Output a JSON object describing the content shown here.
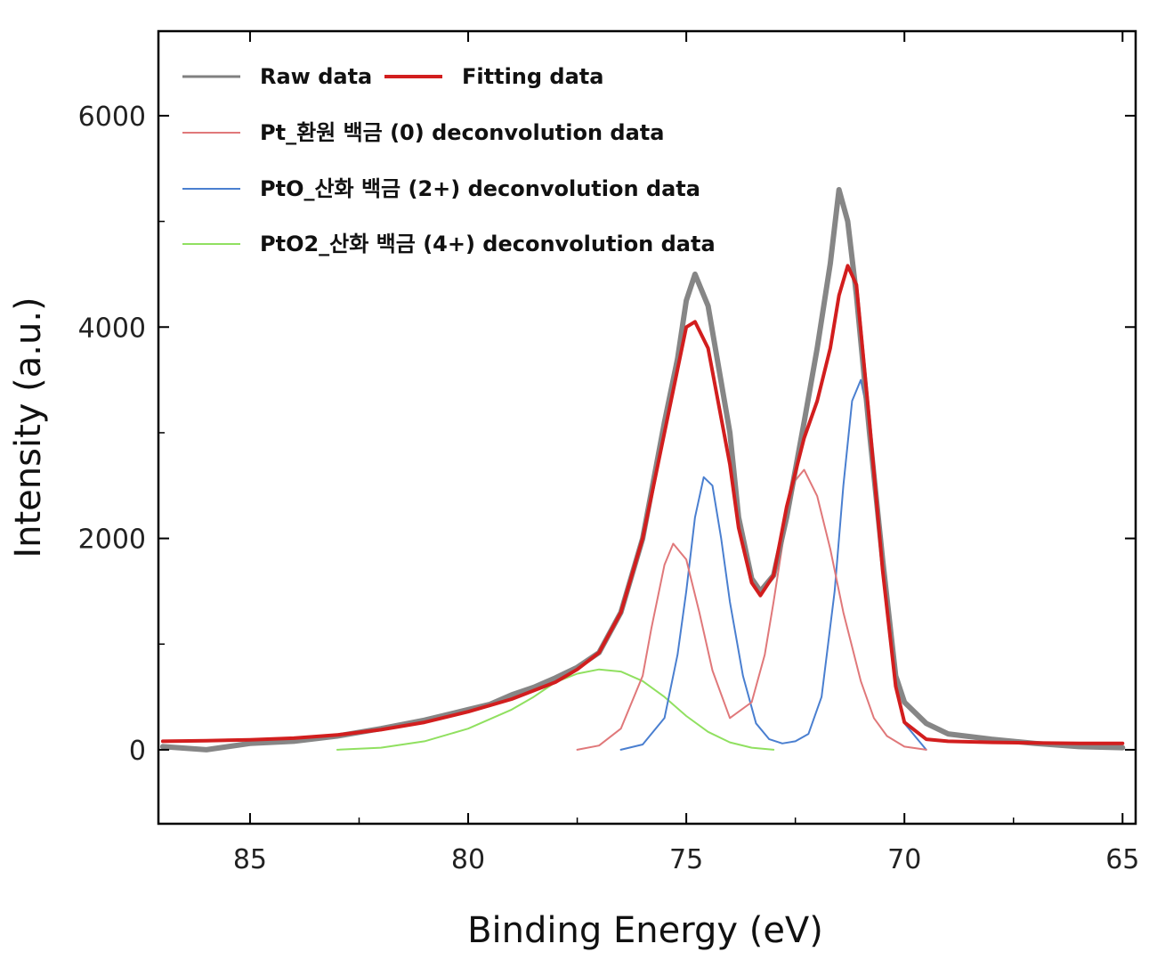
{
  "chart_data": {
    "type": "line",
    "xlabel": "Binding Energy (eV)",
    "ylabel": "Intensity (a.u.)",
    "xlim": [
      87.1,
      64.7
    ],
    "ylim": [
      -700,
      6800
    ],
    "x_reversed": true,
    "x_ticks": [
      85,
      80,
      75,
      70,
      65
    ],
    "y_ticks": [
      0,
      2000,
      4000,
      6000
    ],
    "grid": false,
    "legend_position": "top-left",
    "legend": [
      {
        "label": "Raw data",
        "color": "#808080"
      },
      {
        "label": "Fitting data",
        "color": "#d21e1e"
      },
      {
        "label": "Pt_환원 백금 (0) deconvolution data",
        "color": "#e0787a"
      },
      {
        "label": "PtO_산화 백금 (2+) deconvolution data",
        "color": "#4a7fd0"
      },
      {
        "label": "PtO2_산화 백금 (4+) deconvolution data",
        "color": "#90e060"
      }
    ],
    "series": [
      {
        "name": "Raw data",
        "color": "#808080",
        "x": [
          87,
          86,
          85,
          84,
          83,
          82,
          81,
          80,
          79.5,
          79,
          78.5,
          78,
          77.5,
          77,
          76.5,
          76,
          75.5,
          75.2,
          75,
          74.8,
          74.5,
          74,
          73.8,
          73.5,
          73.3,
          73,
          72.7,
          72.3,
          72,
          71.7,
          71.5,
          71.3,
          71.1,
          70.8,
          70.5,
          70.2,
          70,
          69.5,
          69,
          68,
          67,
          66,
          65
        ],
        "y": [
          30,
          0,
          60,
          80,
          130,
          200,
          280,
          380,
          430,
          520,
          590,
          680,
          780,
          920,
          1300,
          2000,
          3100,
          3700,
          4250,
          4500,
          4200,
          3000,
          2200,
          1620,
          1500,
          1650,
          2200,
          3100,
          3800,
          4600,
          5300,
          5000,
          4300,
          3000,
          1800,
          700,
          450,
          250,
          150,
          100,
          60,
          30,
          20
        ]
      },
      {
        "name": "Fitting data",
        "color": "#d21e1e",
        "x": [
          87,
          86,
          85,
          84,
          83,
          82,
          81,
          80,
          79,
          78,
          77.5,
          77,
          76.5,
          76,
          75.5,
          75.2,
          75,
          74.8,
          74.5,
          74,
          73.8,
          73.5,
          73.3,
          73,
          72.7,
          72.3,
          72,
          71.7,
          71.5,
          71.3,
          71.1,
          70.8,
          70.5,
          70.2,
          70,
          69.5,
          69,
          68,
          67,
          66,
          65
        ],
        "y": [
          80,
          85,
          95,
          110,
          140,
          190,
          260,
          360,
          480,
          640,
          760,
          920,
          1300,
          2000,
          3000,
          3600,
          4000,
          4050,
          3800,
          2700,
          2100,
          1580,
          1460,
          1650,
          2300,
          2950,
          3300,
          3800,
          4300,
          4580,
          4400,
          3100,
          1700,
          600,
          260,
          100,
          80,
          70,
          65,
          60,
          60
        ]
      },
      {
        "name": "Pt_환원 백금 (0) deconvolution data",
        "color": "#e0787a",
        "x": [
          77.5,
          77,
          76.5,
          76,
          75.8,
          75.5,
          75.3,
          75,
          74.7,
          74.4,
          74,
          73.5,
          73.2,
          73,
          72.7,
          72.5,
          72.3,
          72,
          71.7,
          71.4,
          71,
          70.7,
          70.4,
          70,
          69.5
        ],
        "y": [
          0,
          40,
          200,
          700,
          1150,
          1750,
          1950,
          1800,
          1300,
          750,
          300,
          450,
          900,
          1400,
          2200,
          2550,
          2650,
          2400,
          1900,
          1300,
          650,
          300,
          130,
          30,
          0
        ]
      },
      {
        "name": "PtO_산화 백금 (2+) deconvolution data",
        "color": "#4a7fd0",
        "x": [
          76.5,
          76,
          75.5,
          75.2,
          75,
          74.8,
          74.6,
          74.4,
          74.2,
          74,
          73.7,
          73.4,
          73.1,
          72.8,
          72.5,
          72.2,
          71.9,
          71.6,
          71.4,
          71.2,
          71,
          70.8,
          70.6,
          70.4,
          70.2,
          70,
          69.5
        ],
        "y": [
          0,
          50,
          300,
          900,
          1500,
          2200,
          2580,
          2500,
          2000,
          1400,
          700,
          250,
          100,
          60,
          80,
          150,
          500,
          1500,
          2500,
          3300,
          3500,
          3100,
          2200,
          1300,
          600,
          250,
          0
        ]
      },
      {
        "name": "PtO2_산화 백금 (4+) deconvolution data",
        "color": "#90e060",
        "x": [
          83,
          82,
          81,
          80,
          79,
          78.5,
          78,
          77.5,
          77,
          76.5,
          76,
          75.5,
          75,
          74.5,
          74,
          73.5,
          73
        ],
        "y": [
          0,
          20,
          80,
          200,
          380,
          500,
          640,
          720,
          760,
          740,
          650,
          500,
          320,
          170,
          70,
          20,
          0
        ]
      }
    ]
  }
}
